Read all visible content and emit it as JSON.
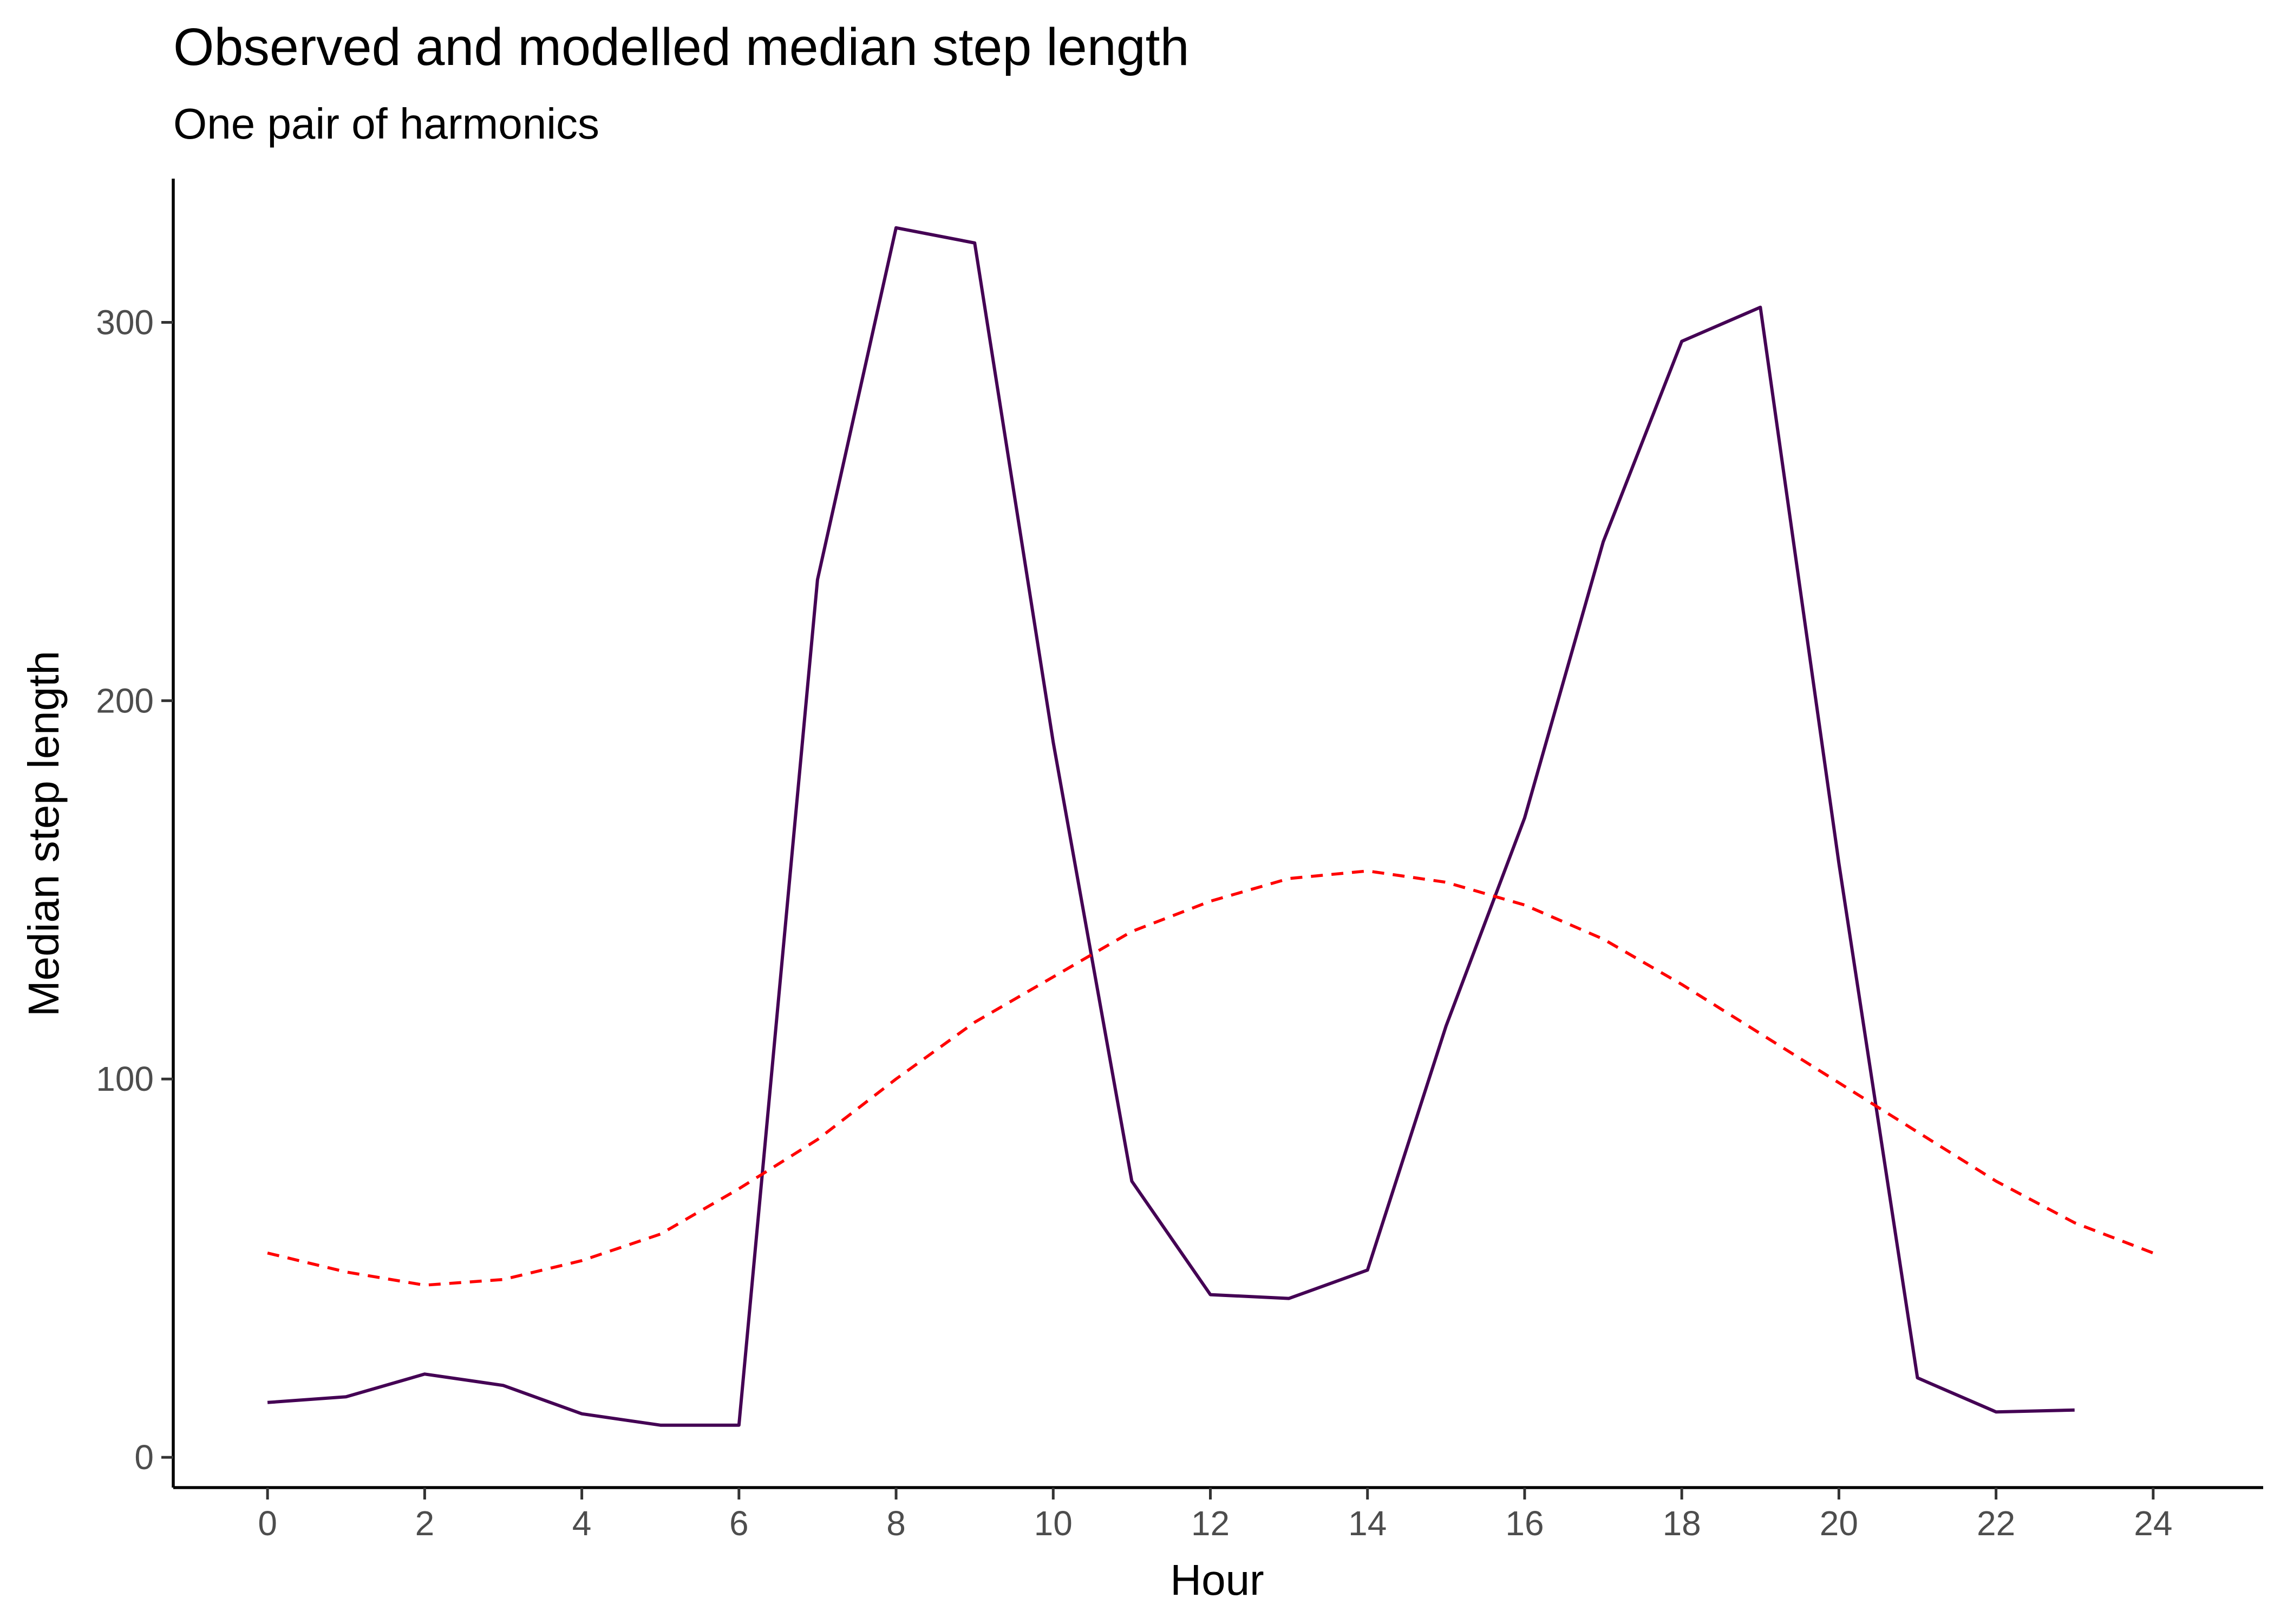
{
  "chart_data": {
    "type": "line",
    "title": "Observed and modelled median step length",
    "subtitle": "One pair of harmonics",
    "xlabel": "Hour",
    "ylabel": "Median step length",
    "xlim": [
      -1.2,
      25.4
    ],
    "ylim": [
      -8,
      338
    ],
    "x_ticks": [
      0,
      2,
      4,
      6,
      8,
      10,
      12,
      14,
      16,
      18,
      20,
      22,
      24
    ],
    "x_tick_labels": [
      "0",
      "2",
      "4",
      "6",
      "8",
      "10",
      "12",
      "14",
      "16",
      "18",
      "20",
      "22",
      "24"
    ],
    "y_ticks": [
      0,
      100,
      200,
      300
    ],
    "y_tick_labels": [
      "0",
      "100",
      "200",
      "300"
    ],
    "grid": false,
    "legend": "none",
    "series": [
      {
        "style": "solid",
        "color": "#440154",
        "x": [
          0,
          1,
          2,
          3,
          4,
          5,
          6,
          7,
          8,
          9,
          10,
          11,
          12,
          13,
          14,
          15,
          16,
          17,
          18,
          19,
          20,
          21,
          22,
          23
        ],
        "values": [
          14.5,
          16,
          22,
          19,
          11.5,
          8.5,
          8.5,
          232,
          325,
          321,
          189,
          73,
          43,
          42,
          49.5,
          114,
          169,
          242,
          295,
          304,
          157,
          21,
          12,
          12.5
        ]
      },
      {
        "style": "dashed",
        "color": "#ff0000",
        "x": [
          0,
          1,
          2,
          3,
          4,
          5,
          6,
          7,
          8,
          9,
          10,
          11,
          12,
          13,
          14,
          15,
          16,
          17,
          18,
          19,
          20,
          21,
          22,
          23,
          24
        ],
        "values": [
          54,
          49,
          45.5,
          47,
          52,
          59,
          71,
          84,
          100,
          115,
          127,
          139,
          147,
          153,
          155,
          152,
          146,
          137,
          125,
          112,
          99,
          86,
          73,
          62,
          54
        ]
      }
    ]
  }
}
